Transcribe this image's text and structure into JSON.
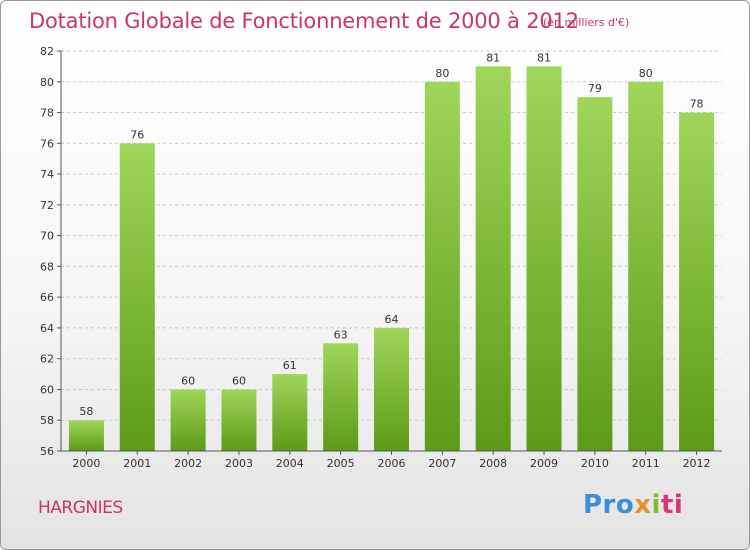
{
  "header": {
    "title": "Dotation Globale de Fonctionnement de 2000 à 2012",
    "unit": "(en milliers d'€)"
  },
  "footer": {
    "commune": "HARGNIES",
    "logo": [
      "Pro",
      "x",
      "i",
      "ti"
    ]
  },
  "colors": {
    "title": "#c8356a",
    "bar_top": "#9fd65a",
    "bar_bottom": "#5d9a17",
    "grid": "#c8c8c8"
  },
  "chart_data": {
    "type": "bar",
    "title": "Dotation Globale de Fonctionnement de 2000 à 2012",
    "subtitle": "(en milliers d'€)",
    "xlabel": "",
    "ylabel": "",
    "categories": [
      "2000",
      "2001",
      "2002",
      "2003",
      "2004",
      "2005",
      "2006",
      "2007",
      "2008",
      "2009",
      "2010",
      "2011",
      "2012"
    ],
    "values": [
      58,
      76,
      60,
      60,
      61,
      63,
      64,
      80,
      81,
      81,
      79,
      80,
      78
    ],
    "ylim": [
      56,
      82
    ],
    "yticks": [
      56,
      58,
      60,
      62,
      64,
      66,
      68,
      70,
      72,
      74,
      76,
      78,
      80,
      82
    ],
    "grid": true,
    "legend": "none"
  }
}
